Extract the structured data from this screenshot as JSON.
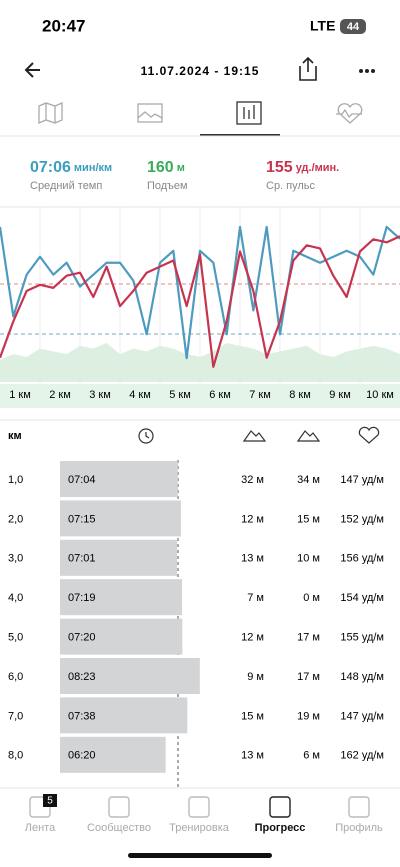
{
  "status": {
    "time": "20:47",
    "network": "LTE",
    "battery": "44"
  },
  "header": {
    "title": "11.07.2024 - 19:15"
  },
  "stats": [
    {
      "value": "07:06",
      "unit": "мин/км",
      "label": "Средний темп",
      "color": "#3a9fbf"
    },
    {
      "value": "160",
      "unit": "м",
      "label": "Подъем",
      "color": "#3aab5a"
    },
    {
      "value": "155",
      "unit": "уд./мин.",
      "label": "Ср. пульс",
      "color": "#c8334f"
    }
  ],
  "chart": {
    "x_labels": [
      "1 км",
      "2 км",
      "3 км",
      "4 км",
      "5 км",
      "6 км",
      "7 км",
      "8 км",
      "9 км",
      "10 км"
    ],
    "pulse": {
      "color": "#c8334f",
      "ylim": [
        120,
        175
      ],
      "values": [
        128,
        140,
        150,
        152,
        151,
        155,
        156,
        148,
        158,
        145,
        150,
        156,
        158,
        160,
        145,
        162,
        125,
        140,
        163,
        150,
        128,
        140,
        160,
        165,
        164,
        155,
        148,
        163,
        167,
        166,
        168
      ]
    },
    "pace": {
      "color": "#4d9bbf",
      "ylim": [
        340,
        480
      ],
      "values": [
        470,
        395,
        430,
        445,
        430,
        440,
        420,
        430,
        440,
        440,
        425,
        380,
        440,
        450,
        360,
        450,
        440,
        380,
        470,
        400,
        470,
        380,
        450,
        445,
        440,
        445,
        450,
        445,
        430,
        470,
        460
      ]
    },
    "elevation": {
      "color": "#dcefe0",
      "ylim": [
        0,
        60
      ],
      "values": [
        8,
        10,
        9,
        12,
        11,
        10,
        13,
        12,
        14,
        10,
        12,
        11,
        13,
        12,
        10,
        9,
        11,
        14,
        13,
        12,
        10,
        11,
        12,
        13,
        10,
        9,
        11,
        12,
        13,
        12,
        10
      ]
    }
  },
  "table": {
    "header": "км",
    "rows": [
      [
        "1,0",
        "07:04",
        "32 м",
        "34 м",
        "147 уд/м"
      ],
      [
        "2,0",
        "07:15",
        "12 м",
        "15 м",
        "152 уд/м"
      ],
      [
        "3,0",
        "07:01",
        "13 м",
        "10 м",
        "156 уд/м"
      ],
      [
        "4,0",
        "07:19",
        "7 м",
        "0 м",
        "154 уд/м"
      ],
      [
        "5,0",
        "07:20",
        "12 м",
        "17 м",
        "155 уд/м"
      ],
      [
        "6,0",
        "08:23",
        "9 м",
        "17 м",
        "148 уд/м"
      ],
      [
        "7,0",
        "07:38",
        "15 м",
        "19 м",
        "147 уд/м"
      ],
      [
        "8,0",
        "06:20",
        "13 м",
        "6 м",
        "162 уд/м"
      ]
    ]
  },
  "tabbar": {
    "badge": "5",
    "items": [
      "Лента",
      "Сообщество",
      "Тренировка",
      "Прогресс",
      "Профиль"
    ],
    "active": 3
  }
}
